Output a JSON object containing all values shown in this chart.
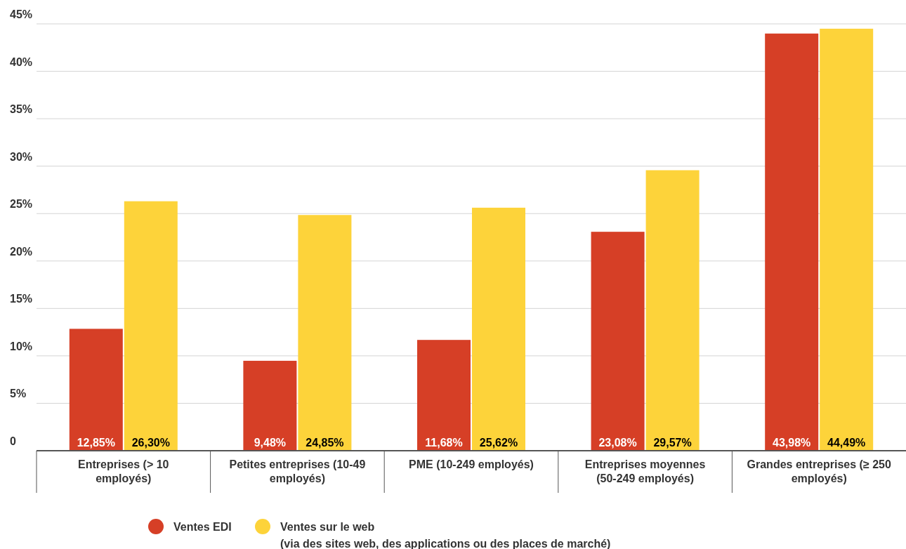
{
  "chart_data": {
    "type": "bar",
    "categories": [
      "Entreprises (> 10 employés)",
      "Petites entreprises (10-49 employés)",
      "PME (10-249 employés)",
      "Entreprises moyennes (50-249 employés)",
      "Grandes entreprises (≥ 250 employés)"
    ],
    "series": [
      {
        "name": "Ventes EDI",
        "color": "#d63f26",
        "values": [
          12.85,
          9.48,
          11.68,
          23.08,
          43.98
        ],
        "value_labels": [
          "12,85%",
          "9,48%",
          "11,68%",
          "23,08%",
          "43,98%"
        ]
      },
      {
        "name": "Ventes sur le web\n(via des sites web, des applications ou des places de marché)",
        "color": "#fdd33a",
        "values": [
          26.3,
          24.85,
          25.62,
          29.57,
          44.49
        ],
        "value_labels": [
          "26,30%",
          "24,85%",
          "25,62%",
          "29,57%",
          "44,49%"
        ]
      }
    ],
    "ylim": [
      0,
      45
    ],
    "yticks": [
      0,
      {
        "value": 5,
        "label": "5%"
      },
      {
        "value": 10,
        "label": "10%"
      },
      {
        "value": 15,
        "label": "15%"
      },
      {
        "value": 20,
        "label": "20%"
      },
      {
        "value": 25,
        "label": "25%"
      },
      {
        "value": 30,
        "label": "30%"
      },
      {
        "value": 35,
        "label": "35%"
      },
      {
        "value": 40,
        "label": "40%"
      },
      {
        "value": 45,
        "label": "45%"
      }
    ],
    "grid": "y",
    "legend": "bottom"
  }
}
